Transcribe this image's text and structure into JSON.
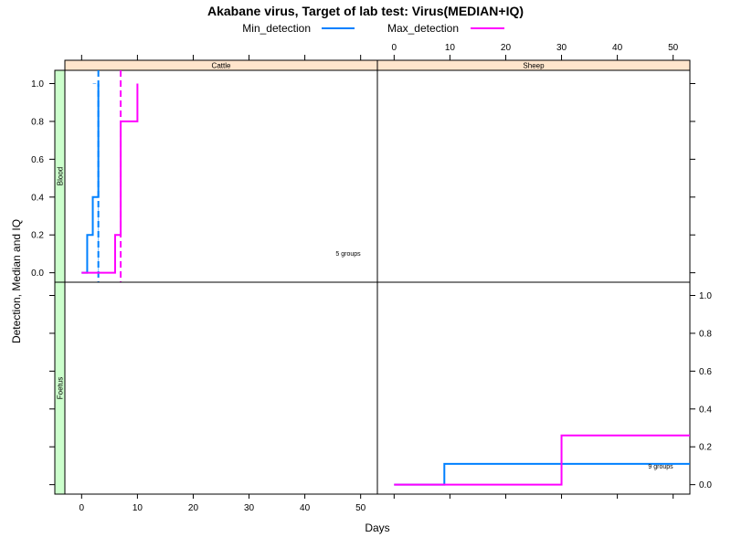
{
  "chart_data": {
    "type": "line",
    "title": "Akabane virus, Target of lab test: Virus(MEDIAN+IQ)",
    "xlabel": "Days",
    "ylabel": "Detection, Median and IQ",
    "xlim": [
      -3,
      53
    ],
    "ylim": [
      -0.05,
      1.07
    ],
    "x_ticks": [
      0,
      10,
      20,
      30,
      40,
      50
    ],
    "y_ticks": [
      0.0,
      0.2,
      0.4,
      0.6,
      0.8,
      1.0
    ],
    "x_tick_labels": [
      "0",
      "10",
      "20",
      "30",
      "40",
      "50"
    ],
    "y_tick_labels": [
      "0.0",
      "0.2",
      "0.4",
      "0.6",
      "0.8",
      "1.0"
    ],
    "legend_position": "top",
    "series": [
      {
        "name": "Min_detection",
        "color": "#0080ff"
      },
      {
        "name": "Max_detection",
        "color": "#ff00ff"
      }
    ],
    "panels": [
      {
        "column": "Cattle",
        "row": "Blood",
        "annotation": "5 groups",
        "lines": {
          "Min_detection": {
            "median": [
              [
                0,
                0.0
              ],
              [
                1,
                0.2
              ],
              [
                2,
                0.4
              ],
              [
                3,
                1.0
              ]
            ],
            "iq_upper": [
              [
                2,
                1.0
              ],
              [
                2.6,
                1.0
              ]
            ],
            "iq_lower": [
              [
                3,
                0.0
              ],
              [
                3,
                0.35
              ]
            ],
            "median_marker": 3
          },
          "Max_detection": {
            "median": [
              [
                0,
                0.0
              ],
              [
                6,
                0.2
              ],
              [
                7,
                0.8
              ],
              [
                10,
                1.0
              ]
            ],
            "median_marker": 7
          }
        }
      },
      {
        "column": "Sheep",
        "row": "Blood",
        "annotation": "",
        "lines": {}
      },
      {
        "column": "Cattle",
        "row": "Foetus",
        "annotation": "",
        "lines": {}
      },
      {
        "column": "Sheep",
        "row": "Foetus",
        "annotation": "9 groups",
        "lines": {
          "Min_detection": {
            "median": [
              [
                0,
                0.0
              ],
              [
                9,
                0.11
              ],
              [
                53,
                0.11
              ]
            ]
          },
          "Max_detection": {
            "median": [
              [
                0,
                0.0
              ],
              [
                30,
                0.26
              ],
              [
                53,
                0.26
              ]
            ]
          }
        }
      }
    ]
  },
  "colors": {
    "strip_column_bg": "#ffe5cc",
    "strip_row_bg": "#ccffcc",
    "frame": "#000000"
  }
}
